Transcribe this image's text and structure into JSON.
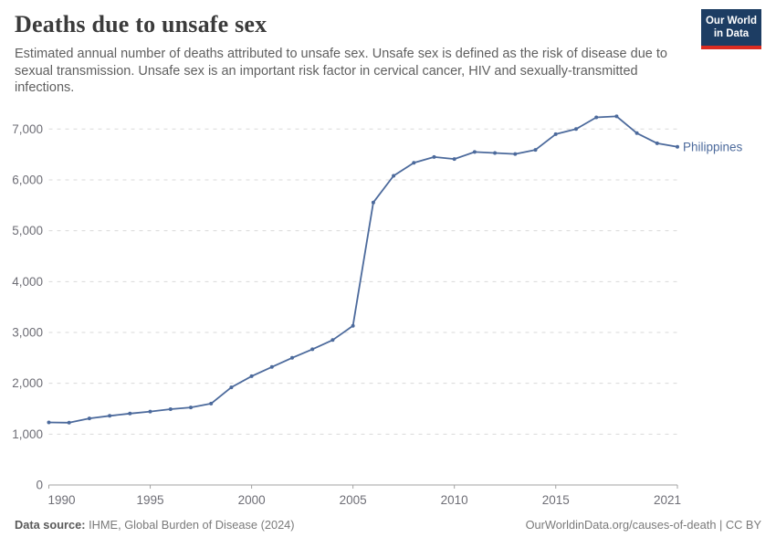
{
  "header": {
    "title": "Deaths due to unsafe sex",
    "subtitle": "Estimated annual number of deaths attributed to unsafe sex. Unsafe sex is defined as the risk of disease due to sexual transmission. Unsafe sex is an important risk factor in cervical cancer, HIV and sexually-transmitted infections.",
    "logo": {
      "line1": "Our World",
      "line2": "in Data"
    }
  },
  "chart_data": {
    "type": "line",
    "title": "Deaths due to unsafe sex",
    "xlabel": "",
    "ylabel": "",
    "xlim": [
      1990,
      2021
    ],
    "ylim": [
      0,
      7400
    ],
    "grid": "horizontal-dashed",
    "legend_position": "end-of-line-label",
    "x": [
      1990,
      1991,
      1992,
      1993,
      1994,
      1995,
      1996,
      1997,
      1998,
      1999,
      2000,
      2001,
      2002,
      2003,
      2004,
      2005,
      2006,
      2007,
      2008,
      2009,
      2010,
      2011,
      2012,
      2013,
      2014,
      2015,
      2016,
      2017,
      2018,
      2019,
      2020,
      2021
    ],
    "series": [
      {
        "name": "Philippines",
        "color": "#4c6a9c",
        "values": [
          1230,
          1225,
          1310,
          1360,
          1405,
          1445,
          1490,
          1525,
          1600,
          1920,
          2140,
          2320,
          2500,
          2670,
          2850,
          3130,
          5555,
          6080,
          6335,
          6450,
          6410,
          6550,
          6530,
          6510,
          6590,
          6900,
          7000,
          7230,
          7250,
          6920,
          6720,
          6650
        ]
      }
    ],
    "yticks": [
      0,
      1000,
      2000,
      3000,
      4000,
      5000,
      6000,
      7000
    ],
    "ytick_labels": [
      "0",
      "1,000",
      "2,000",
      "3,000",
      "4,000",
      "5,000",
      "6,000",
      "7,000"
    ],
    "xticks": [
      1990,
      1995,
      2000,
      2005,
      2010,
      2015,
      2021
    ],
    "xtick_labels": [
      "1990",
      "1995",
      "2000",
      "2005",
      "2010",
      "2015",
      "2021"
    ]
  },
  "colors": {
    "line": "#4c6a9c",
    "entity_label": "#4c6a9c",
    "gridline": "#dadada",
    "axis": "#a3a3a3",
    "tick_label": "#6e6e76",
    "logo_bg": "#1d3d63",
    "logo_stripe": "#dc2c21"
  },
  "footer": {
    "source_label": "Data source:",
    "source_value": " IHME, Global Burden of Disease (2024)",
    "url_text": "OurWorldinData.org/causes-of-death",
    "divider": " | ",
    "license_text": "CC BY"
  }
}
